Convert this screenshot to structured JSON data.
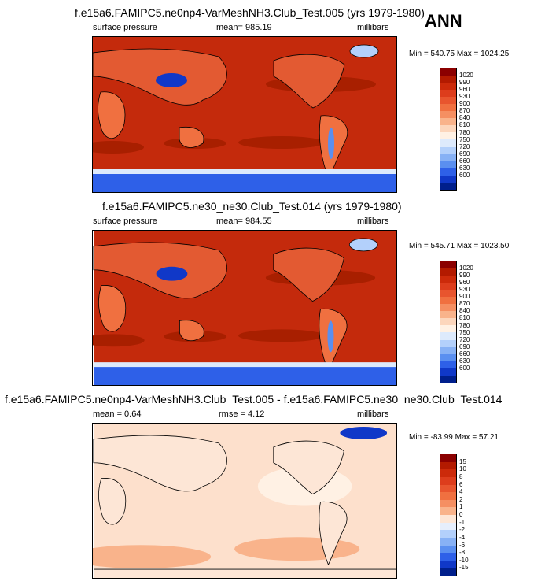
{
  "ann_label": "ANN",
  "panels": [
    {
      "title": "f.e15a6.FAMIPC5.ne0np4-VarMeshNH3.Club_Test.005 (yrs 1979-1980)",
      "left_label": "surface pressure",
      "center_label": "mean= 985.19",
      "right_label": "millibars",
      "minmax": "Min = 540.75 Max = 1024.25",
      "colorbar": {
        "labels": [
          "1020",
          "990",
          "960",
          "930",
          "900",
          "870",
          "840",
          "810",
          "780",
          "750",
          "720",
          "690",
          "660",
          "630",
          "600"
        ],
        "colors": [
          "#8b0000",
          "#b31a00",
          "#cc2a0a",
          "#dd3d1c",
          "#e8552e",
          "#f07040",
          "#f58f62",
          "#f9b38b",
          "#fcd6bc",
          "#fff1e4",
          "#ddeafc",
          "#b3d0fb",
          "#87b1f5",
          "#5a8ff0",
          "#2e60e8",
          "#1038c8",
          "#001f8c"
        ]
      },
      "base_color": "#c42a0c"
    },
    {
      "title": "f.e15a6.FAMIPC5.ne30_ne30.Club_Test.014 (yrs 1979-1980)",
      "left_label": "surface pressure",
      "center_label": "mean= 984.55",
      "right_label": "millibars",
      "minmax": "Min = 545.71 Max = 1023.50",
      "colorbar": {
        "labels": [
          "1020",
          "990",
          "960",
          "930",
          "900",
          "870",
          "840",
          "810",
          "780",
          "750",
          "720",
          "690",
          "660",
          "630",
          "600"
        ],
        "colors": [
          "#8b0000",
          "#b31a00",
          "#cc2a0a",
          "#dd3d1c",
          "#e8552e",
          "#f07040",
          "#f58f62",
          "#f9b38b",
          "#fcd6bc",
          "#fff1e4",
          "#ddeafc",
          "#b3d0fb",
          "#87b1f5",
          "#5a8ff0",
          "#2e60e8",
          "#1038c8",
          "#001f8c"
        ]
      },
      "base_color": "#c42a0c"
    },
    {
      "title": "f.e15a6.FAMIPC5.ne0np4-VarMeshNH3.Club_Test.005 - f.e15a6.FAMIPC5.ne30_ne30.Club_Test.014",
      "left_label": "mean =   0.64",
      "center_label": "rmse =  4.12",
      "right_label": "millibars",
      "minmax": "Min = -83.99 Max =  57.21",
      "colorbar": {
        "labels": [
          "15",
          "10",
          "8",
          "6",
          "4",
          "2",
          "1",
          "0",
          "-1",
          "-2",
          "-4",
          "-6",
          "-8",
          "-10",
          "-15"
        ],
        "colors": [
          "#8b0000",
          "#b31a00",
          "#cc2a0a",
          "#dd3d1c",
          "#e8552e",
          "#f07040",
          "#f58f62",
          "#f9b38b",
          "#fde6d6",
          "#e6eefc",
          "#b3d0fb",
          "#87b1f5",
          "#5a8ff0",
          "#2e60e8",
          "#1038c8",
          "#001f8c"
        ]
      },
      "base_color": "#fde0cc"
    }
  ],
  "chart_data": [
    {
      "type": "heatmap",
      "title": "f.e15a6.FAMIPC5.ne0np4-VarMeshNH3.Club_Test.005 (yrs 1979-1980)",
      "variable": "surface pressure",
      "units": "millibars",
      "mean": 985.19,
      "min": 540.75,
      "max": 1024.25,
      "contour_levels": [
        600,
        630,
        660,
        690,
        720,
        750,
        780,
        810,
        840,
        870,
        900,
        930,
        960,
        990,
        1020
      ]
    },
    {
      "type": "heatmap",
      "title": "f.e15a6.FAMIPC5.ne30_ne30.Club_Test.014 (yrs 1979-1980)",
      "variable": "surface pressure",
      "units": "millibars",
      "mean": 984.55,
      "min": 545.71,
      "max": 1023.5,
      "contour_levels": [
        600,
        630,
        660,
        690,
        720,
        750,
        780,
        810,
        840,
        870,
        900,
        930,
        960,
        990,
        1020
      ]
    },
    {
      "type": "heatmap",
      "title": "f.e15a6.FAMIPC5.ne0np4-VarMeshNH3.Club_Test.005 - f.e15a6.FAMIPC5.ne30_ne30.Club_Test.014",
      "units": "millibars",
      "mean": 0.64,
      "rmse": 4.12,
      "min": -83.99,
      "max": 57.21,
      "contour_levels": [
        -15,
        -10,
        -8,
        -6,
        -4,
        -2,
        -1,
        0,
        1,
        2,
        4,
        6,
        8,
        10,
        15
      ]
    }
  ]
}
